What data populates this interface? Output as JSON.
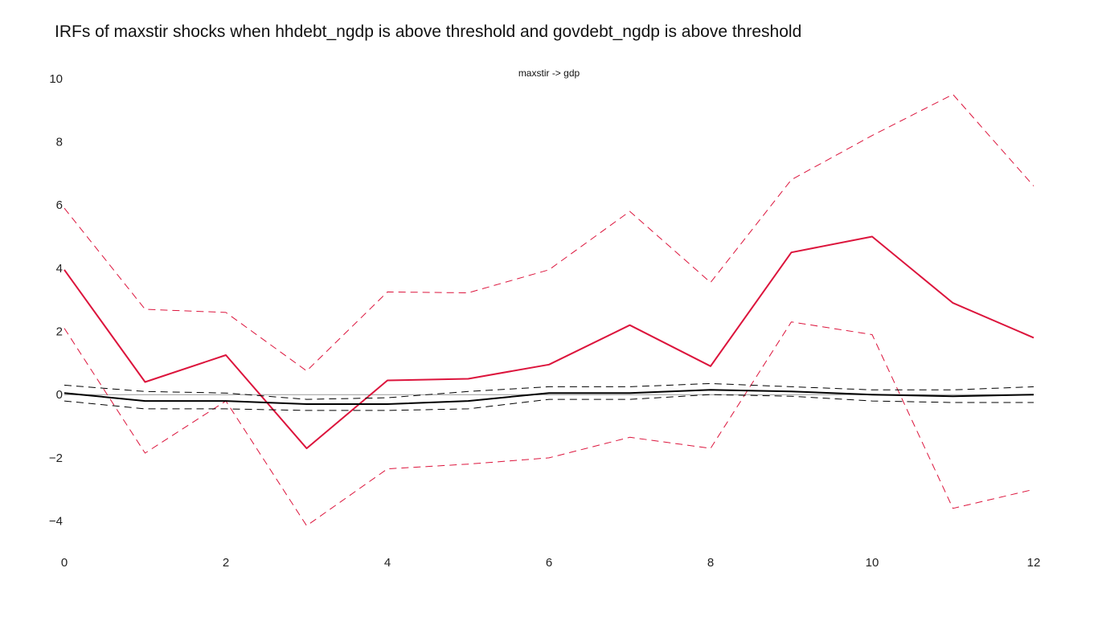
{
  "chart_data": {
    "type": "line",
    "title": "IRFs of maxstir shocks when hhdebt_ngdp is above threshold and govdebt_ngdp is above threshold",
    "subplot_title": "maxstir -> gdp",
    "xlabel": "",
    "ylabel": "",
    "xlim": [
      0,
      12
    ],
    "ylim": [
      -4.8,
      10.2
    ],
    "x_ticks": [
      0,
      2,
      4,
      6,
      8,
      10,
      12
    ],
    "y_ticks": [
      -4,
      -2,
      0,
      2,
      4,
      6,
      8,
      10
    ],
    "y_tick_labels": [
      "−4",
      "−2",
      "0",
      "2",
      "4",
      "6",
      "8",
      "10"
    ],
    "grid": false,
    "legend": "none",
    "x": [
      0,
      1,
      2,
      3,
      4,
      5,
      6,
      7,
      8,
      9,
      10,
      11,
      12
    ],
    "series": [
      {
        "color": "#dc143c",
        "style": "dashed",
        "width": 1,
        "values": [
          5.9,
          2.7,
          2.6,
          0.75,
          3.25,
          3.22,
          3.95,
          5.8,
          3.55,
          6.8,
          8.2,
          9.5,
          6.6
        ]
      },
      {
        "color": "#dc143c",
        "style": "dashed",
        "width": 1,
        "values": [
          2.1,
          -1.85,
          -0.2,
          -4.15,
          -2.35,
          -2.2,
          -2.0,
          -1.35,
          -1.7,
          2.3,
          1.9,
          -3.6,
          -3.0
        ]
      },
      {
        "color": "#dc143c",
        "style": "solid",
        "width": 2,
        "values": [
          3.95,
          0.4,
          1.25,
          -1.7,
          0.45,
          0.5,
          0.95,
          2.2,
          0.9,
          4.5,
          5.0,
          2.9,
          1.8
        ]
      },
      {
        "color": "#000000",
        "style": "dashed",
        "width": 1,
        "values": [
          0.3,
          0.1,
          0.05,
          -0.15,
          -0.1,
          0.1,
          0.25,
          0.25,
          0.35,
          0.25,
          0.15,
          0.15,
          0.25
        ]
      },
      {
        "color": "#000000",
        "style": "dashed",
        "width": 1,
        "values": [
          -0.2,
          -0.45,
          -0.45,
          -0.5,
          -0.5,
          -0.45,
          -0.15,
          -0.15,
          0.0,
          -0.05,
          -0.2,
          -0.25,
          -0.25
        ]
      },
      {
        "color": "#000000",
        "style": "solid",
        "width": 2,
        "values": [
          0.05,
          -0.2,
          -0.2,
          -0.3,
          -0.3,
          -0.2,
          0.05,
          0.05,
          0.15,
          0.1,
          0.0,
          -0.05,
          0.0
        ]
      }
    ],
    "reference_line": {
      "y": 0,
      "color": "#999999"
    }
  }
}
